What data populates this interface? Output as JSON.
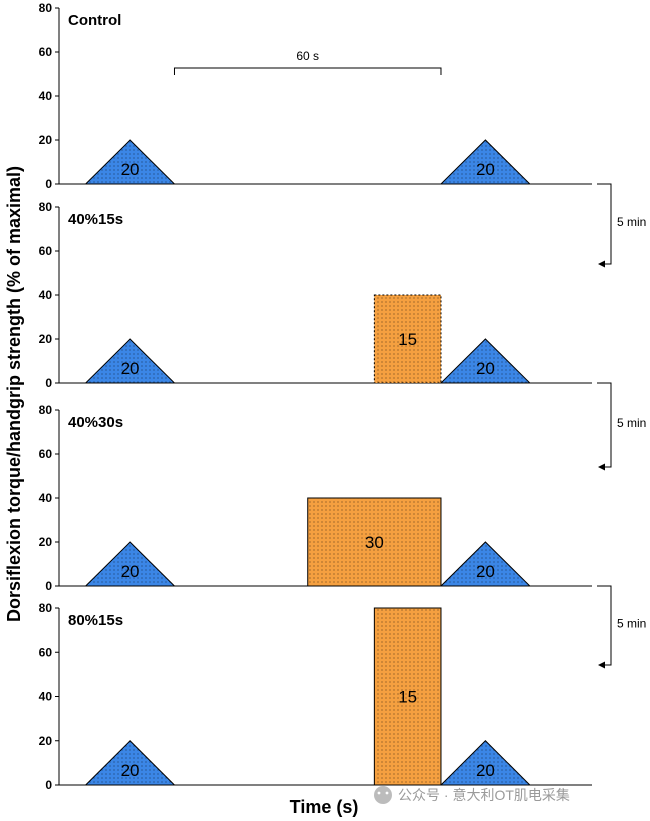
{
  "chart_data": {
    "type": "timeline",
    "ylabel": "Dorsiflexion torque/handgrip strength (% of maximal)",
    "xlabel": "Time (s)",
    "ylim": [
      0,
      80
    ],
    "yticks": [
      0,
      20,
      40,
      60,
      80
    ],
    "xlim": [
      0,
      120
    ],
    "colors": {
      "triangle": "#3b86e6",
      "bar": "#f5a040",
      "outline": "#000000"
    },
    "panels": [
      {
        "title": "Control",
        "triangles": [
          {
            "start": 6,
            "end": 26,
            "peak": 20,
            "label": "20"
          },
          {
            "start": 86,
            "end": 106,
            "peak": 20,
            "label": "20"
          }
        ],
        "bars": []
      },
      {
        "title": "40%15s",
        "triangles": [
          {
            "start": 6,
            "end": 26,
            "peak": 20,
            "label": "20"
          },
          {
            "start": 86,
            "end": 106,
            "peak": 20,
            "label": "20"
          }
        ],
        "bars": [
          {
            "start": 71,
            "end": 86,
            "height": 40,
            "label": "15",
            "dashed": true
          }
        ]
      },
      {
        "title": "40%30s",
        "triangles": [
          {
            "start": 6,
            "end": 26,
            "peak": 20,
            "label": "20"
          },
          {
            "start": 86,
            "end": 106,
            "peak": 20,
            "label": "20"
          }
        ],
        "bars": [
          {
            "start": 56,
            "end": 86,
            "height": 40,
            "label": "30",
            "dashed": false
          }
        ]
      },
      {
        "title": "80%15s",
        "triangles": [
          {
            "start": 6,
            "end": 26,
            "peak": 20,
            "label": "20"
          },
          {
            "start": 86,
            "end": 106,
            "peak": 20,
            "label": "20"
          }
        ],
        "bars": [
          {
            "start": 71,
            "end": 86,
            "height": 80,
            "label": "15",
            "dashed": false
          }
        ]
      }
    ],
    "annotations": {
      "interval": {
        "label": "60 s",
        "start": 26,
        "end": 86
      },
      "rest_label": "5 min"
    }
  },
  "watermark": "公众号 · 意大利OT肌电采集"
}
